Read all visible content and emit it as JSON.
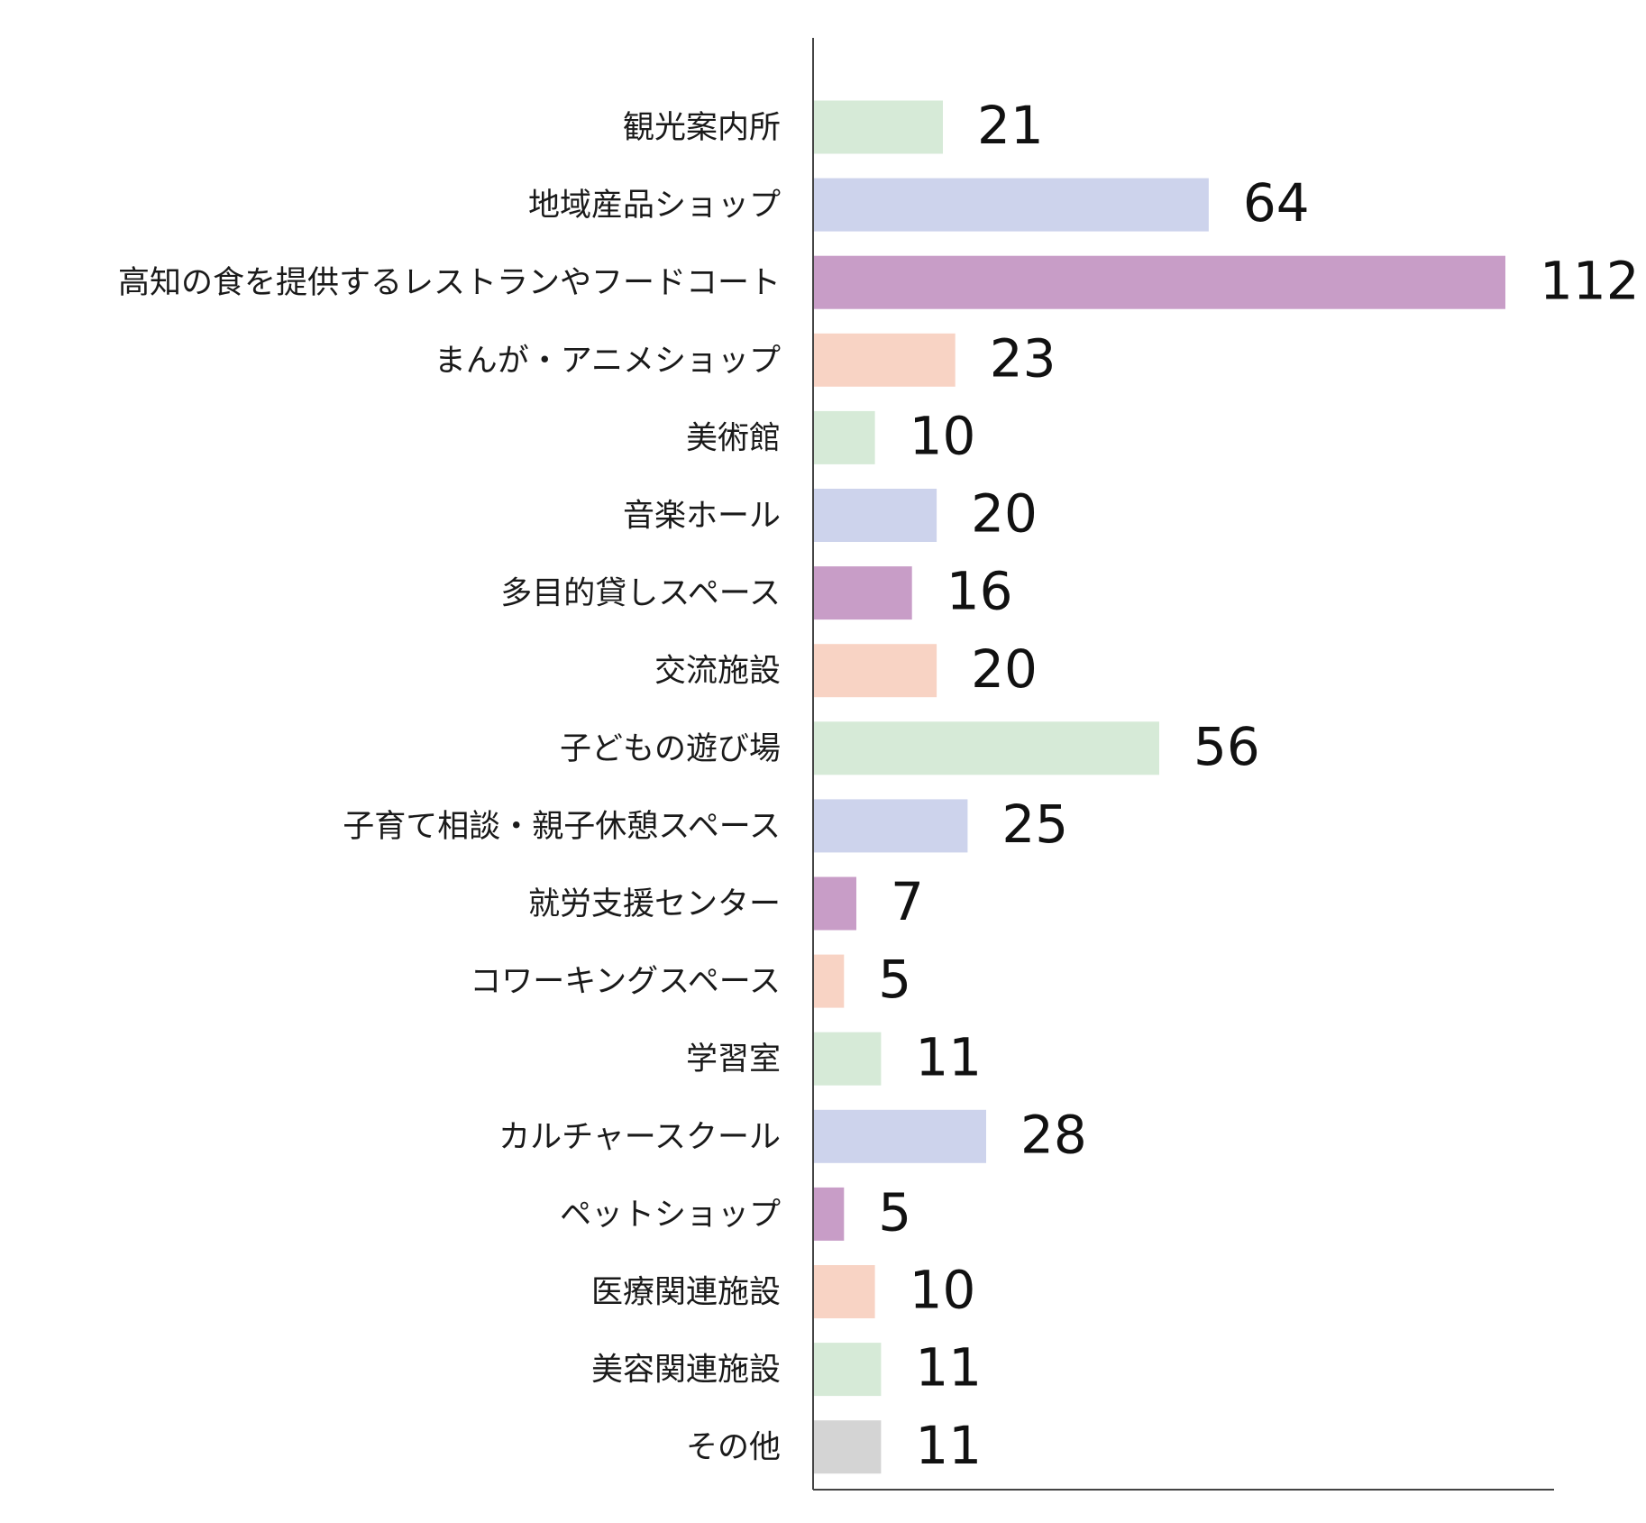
{
  "chart_data": {
    "type": "bar",
    "orientation": "horizontal",
    "title": "",
    "xlabel": "",
    "ylabel": "",
    "xlim": [
      0,
      120
    ],
    "grid": false,
    "legend": "none",
    "categories": [
      "観光案内所",
      "地域産品ショップ",
      "高知の食を提供するレストランやフードコート",
      "まんが・アニメショップ",
      "美術館",
      "音楽ホール",
      "多目的貸しスペース",
      "交流施設",
      "子どもの遊び場",
      "子育て相談・親子休憩スペース",
      "就労支援センター",
      "コワーキングスペース",
      "学習室",
      "カルチャースクール",
      "ペットショップ",
      "医療関連施設",
      "美容関連施設",
      "その他"
    ],
    "values": [
      21,
      64,
      112,
      23,
      10,
      20,
      16,
      20,
      56,
      25,
      7,
      5,
      11,
      28,
      5,
      10,
      11,
      11
    ],
    "value_labels": [
      "21",
      "64",
      "112",
      "23",
      "10",
      "20",
      "16",
      "20",
      "56",
      "25",
      "7",
      "5",
      "11",
      "28",
      "5",
      "10",
      "11",
      "11"
    ],
    "bar_colors": [
      "#d6ead7",
      "#cdd3ec",
      "#c89dc7",
      "#f8d3c4",
      "#d6ead7",
      "#cdd3ec",
      "#c89dc7",
      "#f8d3c4",
      "#d6ead7",
      "#cdd3ec",
      "#c89dc7",
      "#f8d3c4",
      "#d6ead7",
      "#cdd3ec",
      "#c89dc7",
      "#f8d3c4",
      "#d6ead7",
      "#d4d4d4"
    ],
    "axis_color": "#444444"
  }
}
